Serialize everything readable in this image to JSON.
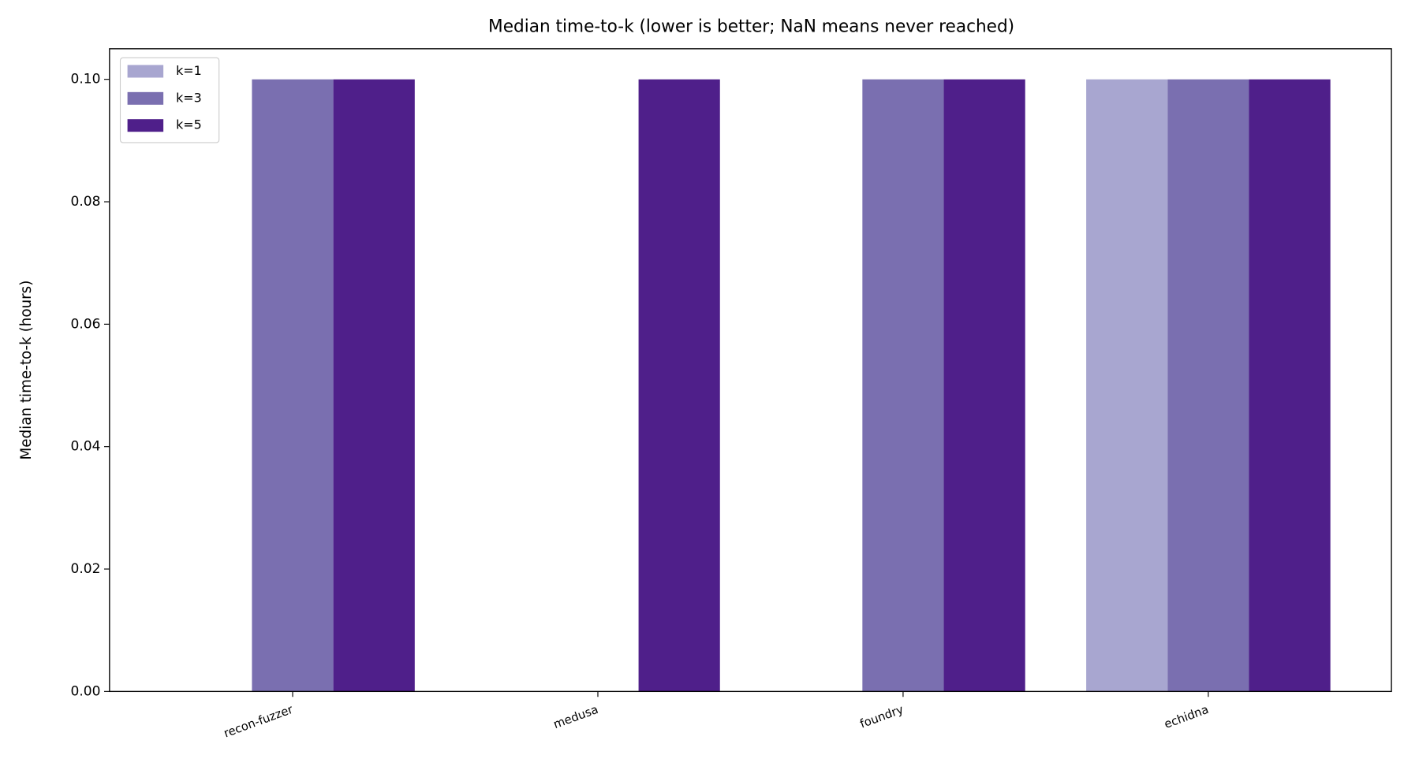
{
  "chart_data": {
    "type": "bar",
    "title": "Median time-to-k (lower is better; NaN means never reached)",
    "y_label": "Median time-to-k (hours)",
    "categories": [
      "recon-fuzzer",
      "medusa",
      "foundry",
      "echidna"
    ],
    "series": [
      {
        "name": "k=1",
        "color": "#a8a6d0",
        "values": [
          null,
          null,
          null,
          0.1
        ]
      },
      {
        "name": "k=3",
        "color": "#7a6fb0",
        "values": [
          0.1,
          null,
          0.1,
          0.1
        ]
      },
      {
        "name": "k=5",
        "color": "#4f1f8a",
        "values": [
          0.1,
          0.1,
          0.1,
          0.1
        ]
      }
    ],
    "ylim": [
      0,
      0.105
    ],
    "yticks": [
      {
        "value": 0,
        "label": "0.00"
      },
      0.02,
      0.04,
      0.06,
      0.08,
      {
        "value": 0.1,
        "label": "0.10"
      }
    ],
    "legend": "upper left",
    "grid": false
  }
}
